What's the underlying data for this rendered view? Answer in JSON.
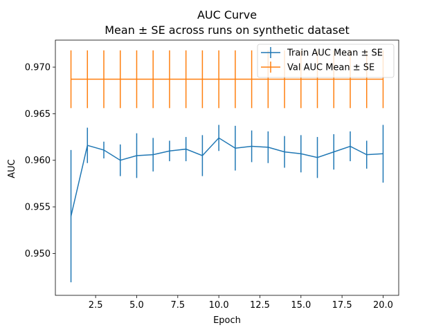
{
  "chart_data": {
    "type": "line",
    "title": "AUC Curve",
    "subtitle": "Mean ± SE across runs on synthetic dataset",
    "xlabel": "Epoch",
    "ylabel": "AUC",
    "xlim": [
      0.05,
      20.95
    ],
    "ylim": [
      0.9455,
      0.9729
    ],
    "x_ticks": [
      2.5,
      5.0,
      7.5,
      10.0,
      12.5,
      15.0,
      17.5,
      20.0
    ],
    "x_tick_labels": [
      "2.5",
      "5.0",
      "7.5",
      "10.0",
      "12.5",
      "15.0",
      "17.5",
      "20.0"
    ],
    "y_ticks": [
      0.95,
      0.955,
      0.96,
      0.965,
      0.97
    ],
    "y_tick_labels": [
      "0.950",
      "0.955",
      "0.960",
      "0.965",
      "0.970"
    ],
    "grid": false,
    "legend_position": "top-right",
    "x": [
      1,
      2,
      3,
      4,
      5,
      6,
      7,
      8,
      9,
      10,
      11,
      12,
      13,
      14,
      15,
      16,
      17,
      18,
      19,
      20
    ],
    "series": [
      {
        "name": "Train AUC Mean ± SE",
        "color": "#1f77b4",
        "values": [
          0.954,
          0.9616,
          0.9611,
          0.96,
          0.9605,
          0.9606,
          0.961,
          0.9612,
          0.9605,
          0.9624,
          0.9613,
          0.9615,
          0.9614,
          0.9609,
          0.9607,
          0.9603,
          0.9609,
          0.9615,
          0.9606,
          0.9607
        ],
        "errors": [
          0.0071,
          0.0019,
          0.0009,
          0.0017,
          0.0024,
          0.0018,
          0.0011,
          0.0013,
          0.0022,
          0.0014,
          0.0024,
          0.0017,
          0.0017,
          0.0017,
          0.002,
          0.0022,
          0.0019,
          0.0016,
          0.0015,
          0.0031
        ]
      },
      {
        "name": "Val AUC Mean ± SE",
        "color": "#ff7f0e",
        "values": [
          0.9687,
          0.9687,
          0.9687,
          0.9687,
          0.9687,
          0.9687,
          0.9687,
          0.9687,
          0.9687,
          0.9687,
          0.9687,
          0.9687,
          0.9687,
          0.9687,
          0.9687,
          0.9687,
          0.9687,
          0.9687,
          0.9687,
          0.9687
        ],
        "errors": [
          0.0031,
          0.0031,
          0.0031,
          0.0031,
          0.0031,
          0.0031,
          0.0031,
          0.0031,
          0.0031,
          0.0031,
          0.0031,
          0.0031,
          0.0031,
          0.0031,
          0.0031,
          0.0031,
          0.0031,
          0.0031,
          0.0031,
          0.0031
        ]
      }
    ]
  }
}
